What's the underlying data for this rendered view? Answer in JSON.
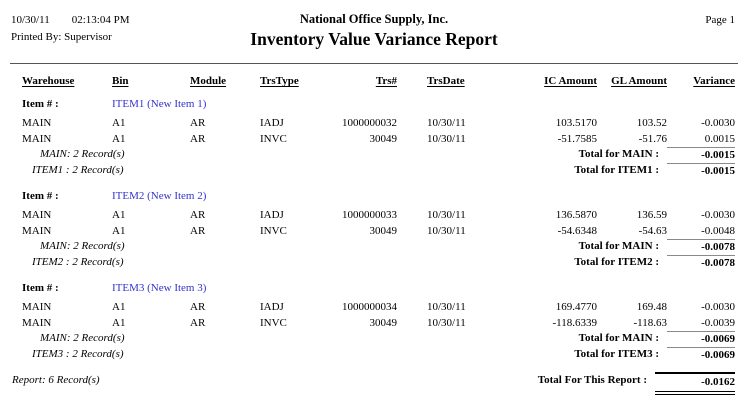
{
  "header": {
    "date": "10/30/11",
    "time": "02:13:04 PM",
    "printed_by": "Printed By: Supervisor",
    "company": "National Office Supply, Inc.",
    "title": "Inventory Value Variance Report",
    "page": "Page 1"
  },
  "columns": [
    "Warehouse",
    "Bin",
    "Module",
    "TrsType",
    "Trs#",
    "TrsDate",
    "IC Amount",
    "GL Amount",
    "Variance"
  ],
  "item_label": "Item # :",
  "groups": [
    {
      "item_name": "ITEM1 (New Item 1)",
      "rows": [
        {
          "warehouse": "MAIN",
          "bin": "A1",
          "module": "AR",
          "trs_type": "IADJ",
          "trs_num": "1000000032",
          "trs_date": "10/30/11",
          "ic_amount": "103.5170",
          "gl_amount": "103.52",
          "variance": "-0.0030"
        },
        {
          "warehouse": "MAIN",
          "bin": "A1",
          "module": "AR",
          "trs_type": "INVC",
          "trs_num": "30049",
          "trs_date": "10/30/11",
          "ic_amount": "-51.7585",
          "gl_amount": "-51.76",
          "variance": "0.0015"
        }
      ],
      "warehouse_count": "MAIN: 2 Record(s)",
      "warehouse_total_label": "Total for MAIN :",
      "warehouse_total": "-0.0015",
      "item_count": "ITEM1 : 2 Record(s)",
      "item_total_label": "Total for ITEM1 :",
      "item_total": "-0.0015"
    },
    {
      "item_name": "ITEM2 (New Item 2)",
      "rows": [
        {
          "warehouse": "MAIN",
          "bin": "A1",
          "module": "AR",
          "trs_type": "IADJ",
          "trs_num": "1000000033",
          "trs_date": "10/30/11",
          "ic_amount": "136.5870",
          "gl_amount": "136.59",
          "variance": "-0.0030"
        },
        {
          "warehouse": "MAIN",
          "bin": "A1",
          "module": "AR",
          "trs_type": "INVC",
          "trs_num": "30049",
          "trs_date": "10/30/11",
          "ic_amount": "-54.6348",
          "gl_amount": "-54.63",
          "variance": "-0.0048"
        }
      ],
      "warehouse_count": "MAIN: 2 Record(s)",
      "warehouse_total_label": "Total for MAIN :",
      "warehouse_total": "-0.0078",
      "item_count": "ITEM2 : 2 Record(s)",
      "item_total_label": "Total for ITEM2 :",
      "item_total": "-0.0078"
    },
    {
      "item_name": "ITEM3 (New Item 3)",
      "rows": [
        {
          "warehouse": "MAIN",
          "bin": "A1",
          "module": "AR",
          "trs_type": "IADJ",
          "trs_num": "1000000034",
          "trs_date": "10/30/11",
          "ic_amount": "169.4770",
          "gl_amount": "169.48",
          "variance": "-0.0030"
        },
        {
          "warehouse": "MAIN",
          "bin": "A1",
          "module": "AR",
          "trs_type": "INVC",
          "trs_num": "30049",
          "trs_date": "10/30/11",
          "ic_amount": "-118.6339",
          "gl_amount": "-118.63",
          "variance": "-0.0039"
        }
      ],
      "warehouse_count": "MAIN: 2 Record(s)",
      "warehouse_total_label": "Total for MAIN :",
      "warehouse_total": "-0.0069",
      "item_count": "ITEM3 : 2 Record(s)",
      "item_total_label": "Total for ITEM3 :",
      "item_total": "-0.0069"
    }
  ],
  "footer": {
    "report_count": "Report: 6 Record(s)",
    "report_total_label": "Total For This Report :",
    "report_total": "-0.0162"
  },
  "colors": {
    "item_link": "#3333cc",
    "text": "#000000",
    "group_total_rule": "#8a8a8a",
    "report_total_rule": "#000000"
  }
}
